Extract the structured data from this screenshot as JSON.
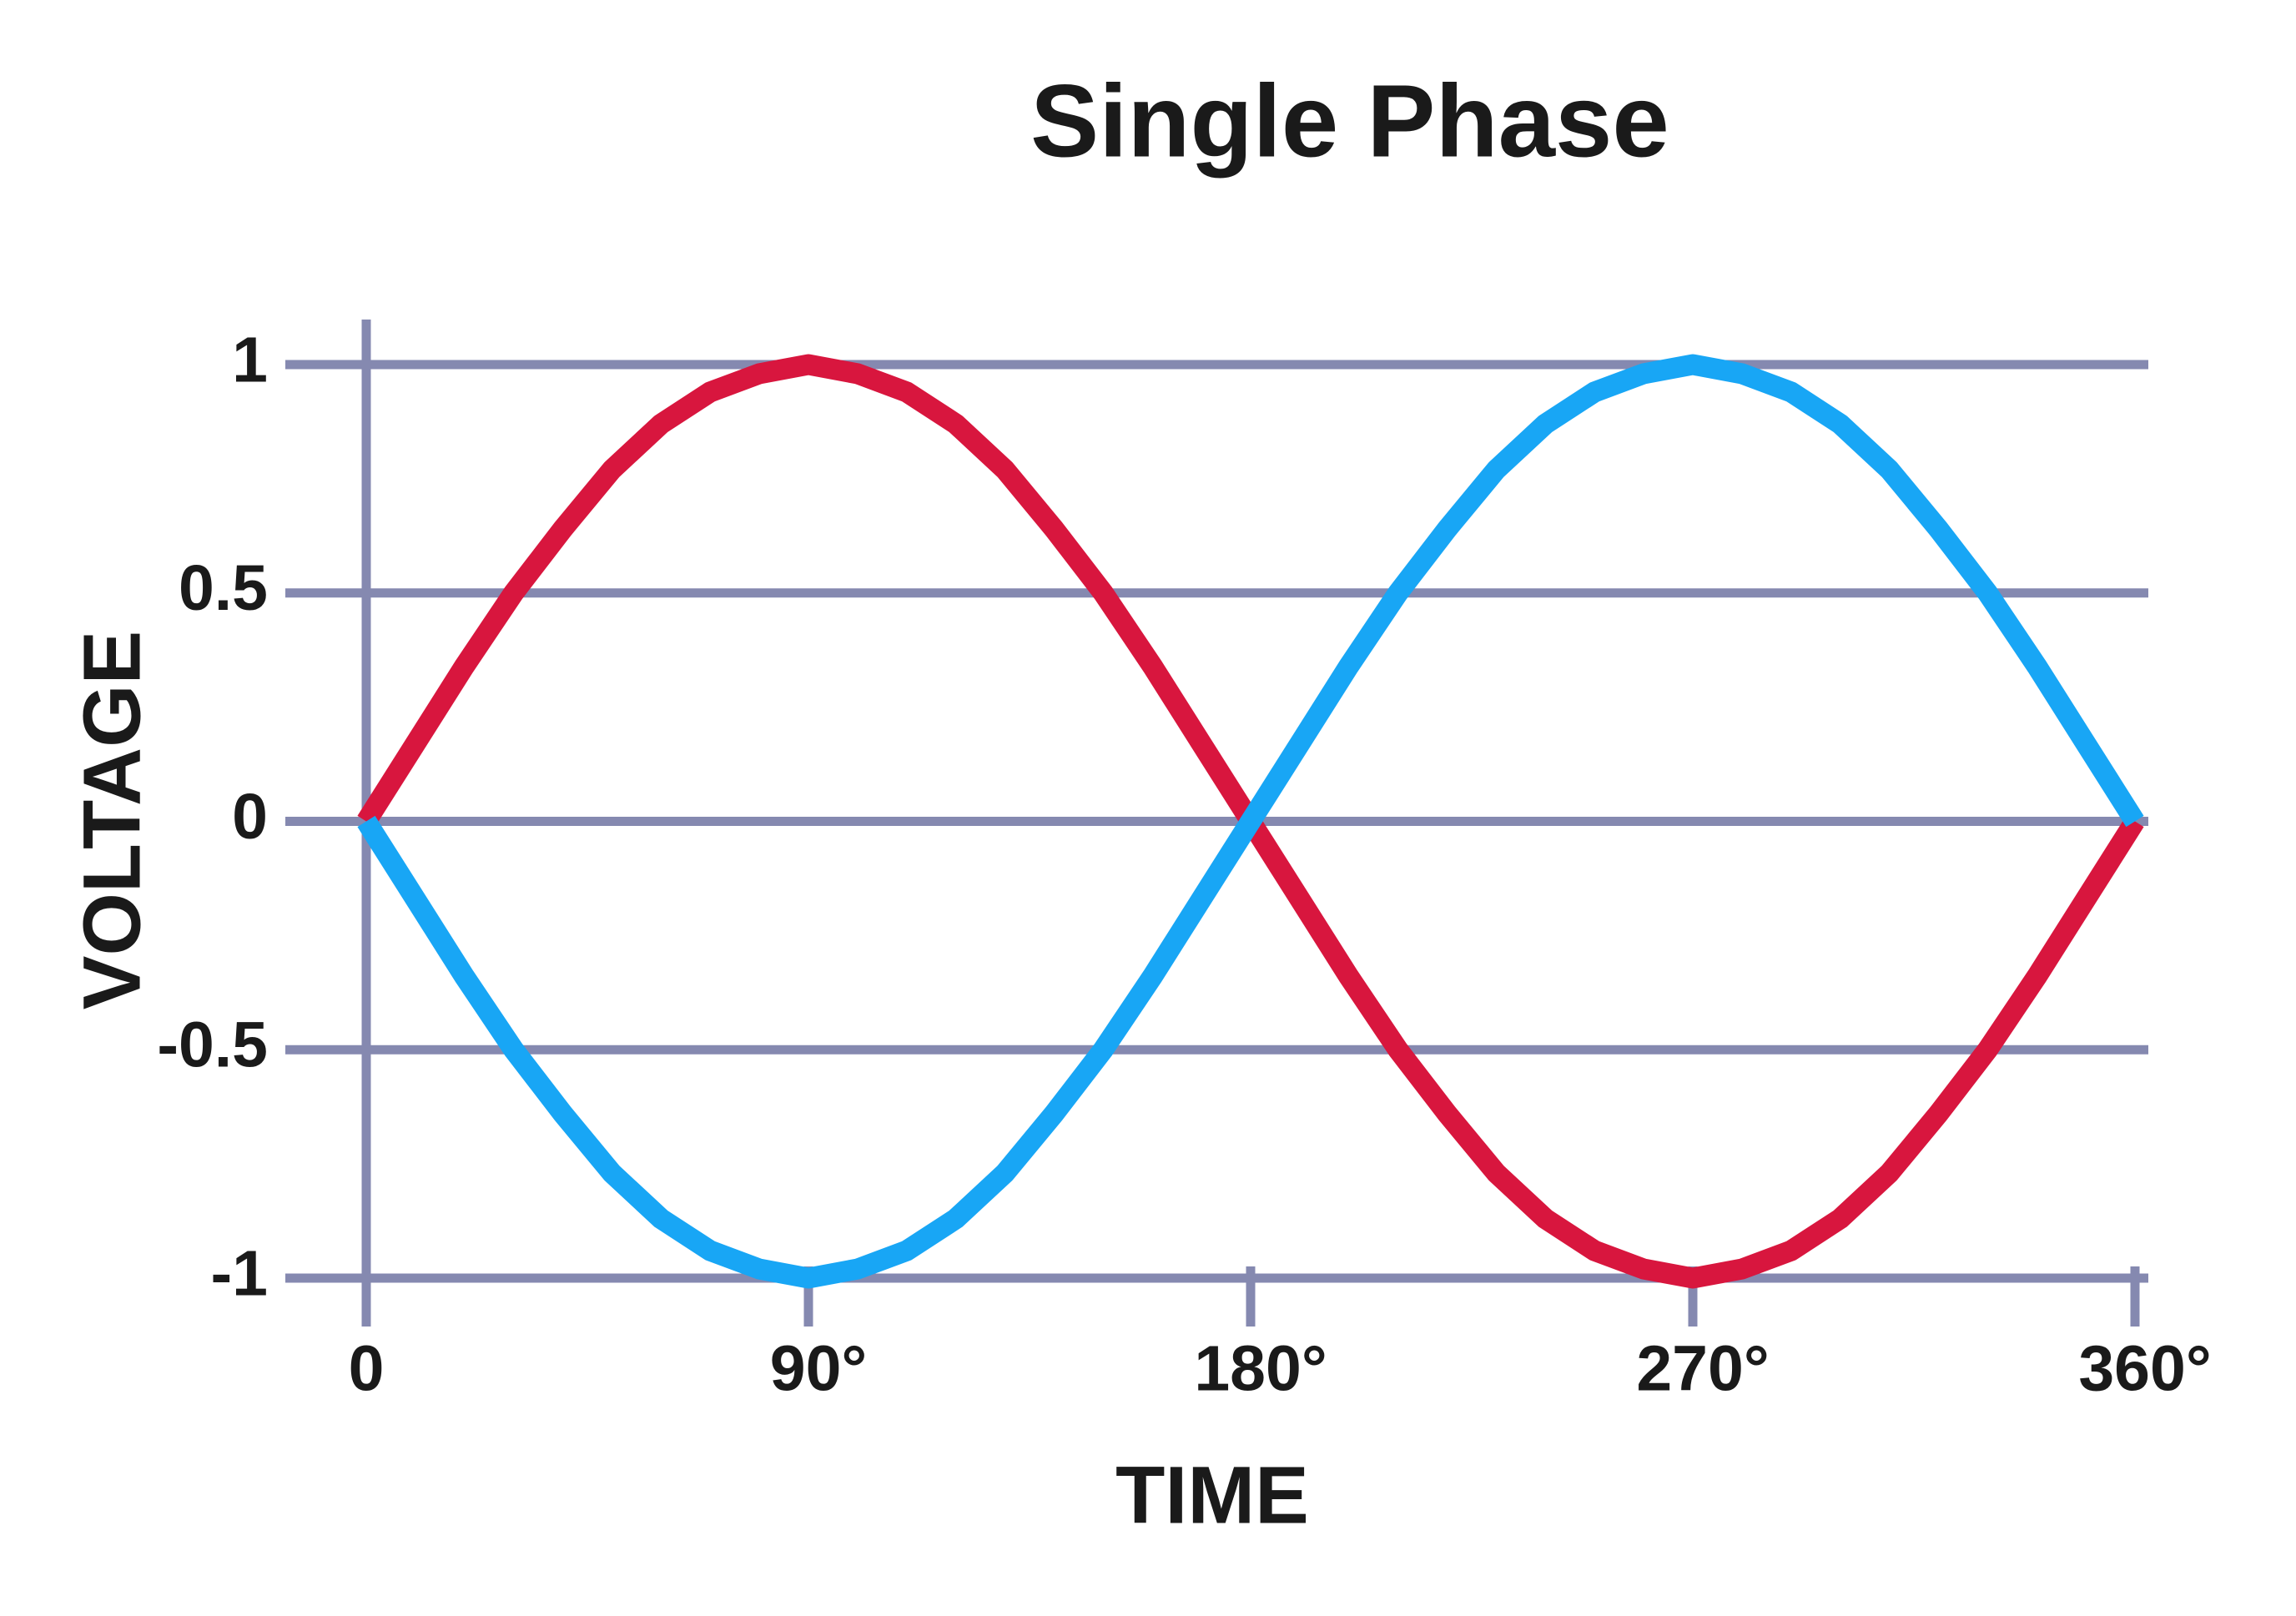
{
  "chart_data": {
    "type": "line",
    "title": "Single Phase",
    "xlabel": "TIME",
    "ylabel": "VOLTAGE",
    "x": [
      0,
      10,
      20,
      30,
      40,
      50,
      60,
      70,
      80,
      90,
      100,
      110,
      120,
      130,
      140,
      150,
      160,
      170,
      180,
      190,
      200,
      210,
      220,
      230,
      240,
      250,
      260,
      270,
      280,
      290,
      300,
      310,
      320,
      330,
      340,
      350,
      360
    ],
    "series": [
      {
        "color": "#d8163e",
        "values": [
          0,
          0.17,
          0.34,
          0.5,
          0.64,
          0.77,
          0.87,
          0.94,
          0.98,
          1,
          0.98,
          0.94,
          0.87,
          0.77,
          0.64,
          0.5,
          0.34,
          0.17,
          0,
          -0.17,
          -0.34,
          -0.5,
          -0.64,
          -0.77,
          -0.87,
          -0.94,
          -0.98,
          -1,
          -0.98,
          -0.94,
          -0.87,
          -0.77,
          -0.64,
          -0.5,
          -0.34,
          -0.17,
          0
        ]
      },
      {
        "color": "#18a6f5",
        "values": [
          0,
          -0.17,
          -0.34,
          -0.5,
          -0.64,
          -0.77,
          -0.87,
          -0.94,
          -0.98,
          -1,
          -0.98,
          -0.94,
          -0.87,
          -0.77,
          -0.64,
          -0.5,
          -0.34,
          -0.17,
          0,
          0.17,
          0.34,
          0.5,
          0.64,
          0.77,
          0.87,
          0.94,
          0.98,
          1,
          0.98,
          0.94,
          0.87,
          0.77,
          0.64,
          0.5,
          0.34,
          0.17,
          0
        ]
      }
    ],
    "xlim": [
      0,
      360
    ],
    "xticks": [
      0,
      {
        "value": 90,
        "label": "90°"
      },
      {
        "value": 180,
        "label": "180°"
      },
      {
        "value": 270,
        "label": "270°"
      },
      {
        "value": 360,
        "label": "360°"
      }
    ],
    "ylim": [
      -1,
      1
    ],
    "yticks": [
      1,
      0.5,
      0,
      -0.5,
      -1
    ],
    "grid": true,
    "grid_color": "#8589b0"
  }
}
